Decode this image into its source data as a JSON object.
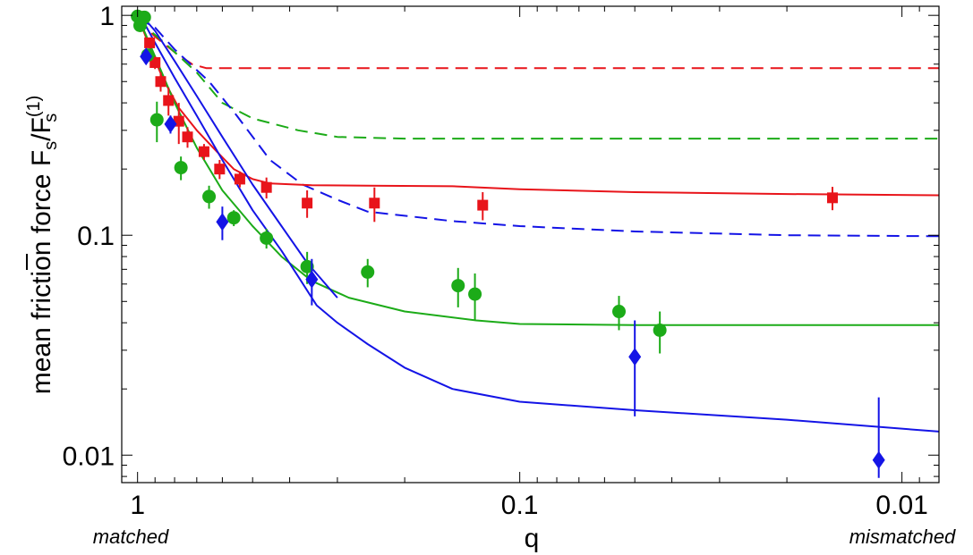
{
  "chart_data": {
    "type": "scatter",
    "xlabel": "q",
    "ylabel_prefix": "mean friction force ",
    "x_scale": "log-reversed",
    "y_scale": "log",
    "xlim": [
      1.1,
      0.008
    ],
    "ylim": [
      0.0075,
      1.1
    ],
    "x_ticks": [
      {
        "value": 1,
        "label": "1"
      },
      {
        "value": 0.1,
        "label": "0.1"
      },
      {
        "value": 0.01,
        "label": "0.01"
      }
    ],
    "y_ticks": [
      {
        "value": 1,
        "label": "1"
      },
      {
        "value": 0.1,
        "label": "0.1"
      },
      {
        "value": 0.01,
        "label": "0.01"
      }
    ],
    "corner_labels": {
      "left": "matched",
      "right": "mismatched"
    },
    "series": [
      {
        "color": "#e8141a",
        "marker": "square",
        "points": [
          {
            "x": 0.98,
            "y": 0.99,
            "err": 0.02
          },
          {
            "x": 0.93,
            "y": 0.75,
            "err": 0.04
          },
          {
            "x": 0.9,
            "y": 0.61,
            "err": 0.04
          },
          {
            "x": 0.87,
            "y": 0.5,
            "err": 0.05
          },
          {
            "x": 0.83,
            "y": 0.41,
            "err": 0.06
          },
          {
            "x": 0.78,
            "y": 0.33,
            "err": 0.07
          },
          {
            "x": 0.74,
            "y": 0.28,
            "err": 0.03
          },
          {
            "x": 0.67,
            "y": 0.24,
            "err": 0.02
          },
          {
            "x": 0.61,
            "y": 0.2,
            "err": 0.02
          },
          {
            "x": 0.54,
            "y": 0.18,
            "err": 0.015
          },
          {
            "x": 0.46,
            "y": 0.165,
            "err": 0.018
          },
          {
            "x": 0.36,
            "y": 0.14,
            "err": 0.02
          },
          {
            "x": 0.24,
            "y": 0.14,
            "err": 0.025
          },
          {
            "x": 0.125,
            "y": 0.137,
            "err": 0.02
          },
          {
            "x": 0.0152,
            "y": 0.148,
            "err": 0.018
          }
        ]
      },
      {
        "color": "#1cab18",
        "marker": "circle",
        "points": [
          {
            "x": 1.0,
            "y": 0.99,
            "err": 0.03
          },
          {
            "x": 0.985,
            "y": 0.9,
            "err": 0.03
          },
          {
            "x": 0.96,
            "y": 0.98,
            "err": 0.03
          },
          {
            "x": 0.94,
            "y": 0.66,
            "err": 0.04
          },
          {
            "x": 0.89,
            "y": 0.335,
            "err": 0.07
          },
          {
            "x": 0.77,
            "y": 0.203,
            "err": 0.025
          },
          {
            "x": 0.65,
            "y": 0.15,
            "err": 0.018
          },
          {
            "x": 0.56,
            "y": 0.12,
            "err": 0.01
          },
          {
            "x": 0.46,
            "y": 0.097,
            "err": 0.01
          },
          {
            "x": 0.36,
            "y": 0.072,
            "err": 0.012
          },
          {
            "x": 0.25,
            "y": 0.068,
            "err": 0.01
          },
          {
            "x": 0.145,
            "y": 0.059,
            "err": 0.012
          },
          {
            "x": 0.131,
            "y": 0.054,
            "err": 0.013
          },
          {
            "x": 0.055,
            "y": 0.045,
            "err": 0.008
          },
          {
            "x": 0.043,
            "y": 0.037,
            "err": 0.008
          }
        ]
      },
      {
        "color": "#1414e6",
        "marker": "diamond",
        "points": [
          {
            "x": 0.95,
            "y": 0.65,
            "err": 0.03
          },
          {
            "x": 0.82,
            "y": 0.32,
            "err": 0.03
          },
          {
            "x": 0.6,
            "y": 0.115,
            "err": 0.02
          },
          {
            "x": 0.35,
            "y": 0.063,
            "err": 0.015
          },
          {
            "x": 0.05,
            "y": 0.028,
            "err": 0.013
          },
          {
            "x": 0.0115,
            "y": 0.0095,
            "err": 0.0088
          }
        ]
      }
    ],
    "curves": [
      {
        "color": "#e8141a",
        "style": "dashed",
        "points": [
          [
            1.0,
            0.96
          ],
          [
            0.9,
            0.8
          ],
          [
            0.8,
            0.68
          ],
          [
            0.72,
            0.6
          ],
          [
            0.66,
            0.575
          ],
          [
            0.5,
            0.575
          ],
          [
            0.1,
            0.575
          ],
          [
            0.008,
            0.575
          ]
        ]
      },
      {
        "color": "#1cab18",
        "style": "dashed",
        "points": [
          [
            1.0,
            0.95
          ],
          [
            0.85,
            0.75
          ],
          [
            0.7,
            0.55
          ],
          [
            0.6,
            0.4
          ],
          [
            0.5,
            0.34
          ],
          [
            0.38,
            0.3
          ],
          [
            0.3,
            0.28
          ],
          [
            0.2,
            0.275
          ],
          [
            0.1,
            0.275
          ],
          [
            0.008,
            0.275
          ]
        ]
      },
      {
        "color": "#1414e6",
        "style": "dashed",
        "points": [
          [
            1.0,
            0.97
          ],
          [
            0.9,
            0.88
          ],
          [
            0.8,
            0.7
          ],
          [
            0.65,
            0.5
          ],
          [
            0.55,
            0.35
          ],
          [
            0.45,
            0.22
          ],
          [
            0.37,
            0.17
          ],
          [
            0.3,
            0.145
          ],
          [
            0.25,
            0.128
          ],
          [
            0.15,
            0.116
          ],
          [
            0.1,
            0.11
          ],
          [
            0.05,
            0.104
          ],
          [
            0.02,
            0.1
          ],
          [
            0.008,
            0.099
          ]
        ]
      },
      {
        "color": "#e8141a",
        "style": "solid",
        "points": [
          [
            1.0,
            1.0
          ],
          [
            0.93,
            0.72
          ],
          [
            0.86,
            0.52
          ],
          [
            0.78,
            0.38
          ],
          [
            0.7,
            0.3
          ],
          [
            0.62,
            0.24
          ],
          [
            0.56,
            0.2
          ],
          [
            0.5,
            0.18
          ],
          [
            0.45,
            0.172
          ],
          [
            0.35,
            0.169
          ],
          [
            0.25,
            0.168
          ],
          [
            0.15,
            0.167
          ],
          [
            0.1,
            0.162
          ],
          [
            0.05,
            0.157
          ],
          [
            0.02,
            0.154
          ],
          [
            0.008,
            0.152
          ]
        ]
      },
      {
        "color": "#1cab18",
        "style": "solid",
        "points": [
          [
            1.0,
            1.0
          ],
          [
            0.9,
            0.65
          ],
          [
            0.8,
            0.4
          ],
          [
            0.7,
            0.25
          ],
          [
            0.6,
            0.16
          ],
          [
            0.5,
            0.11
          ],
          [
            0.42,
            0.08
          ],
          [
            0.35,
            0.062
          ],
          [
            0.28,
            0.052
          ],
          [
            0.2,
            0.045
          ],
          [
            0.13,
            0.041
          ],
          [
            0.1,
            0.0395
          ],
          [
            0.05,
            0.039
          ],
          [
            0.008,
            0.039
          ]
        ]
      },
      {
        "color": "#1414e6",
        "style": "solid",
        "points": [
          [
            1.0,
            1.05
          ],
          [
            0.9,
            0.75
          ],
          [
            0.8,
            0.52
          ],
          [
            0.7,
            0.35
          ],
          [
            0.6,
            0.22
          ],
          [
            0.5,
            0.13
          ],
          [
            0.42,
            0.085
          ],
          [
            0.38,
            0.065
          ],
          [
            0.34,
            0.048
          ],
          [
            0.3,
            0.04
          ],
          [
            0.25,
            0.032
          ],
          [
            0.2,
            0.025
          ],
          [
            0.15,
            0.02
          ],
          [
            0.1,
            0.0175
          ],
          [
            0.05,
            0.016
          ],
          [
            0.02,
            0.0145
          ],
          [
            0.008,
            0.0128
          ]
        ]
      },
      {
        "color": "#1414e6",
        "style": "solid",
        "points": [
          [
            1.0,
            1.05
          ],
          [
            0.9,
            0.85
          ],
          [
            0.8,
            0.62
          ],
          [
            0.7,
            0.43
          ],
          [
            0.6,
            0.28
          ],
          [
            0.5,
            0.17
          ],
          [
            0.42,
            0.11
          ],
          [
            0.36,
            0.075
          ],
          [
            0.3,
            0.052
          ]
        ]
      }
    ]
  }
}
